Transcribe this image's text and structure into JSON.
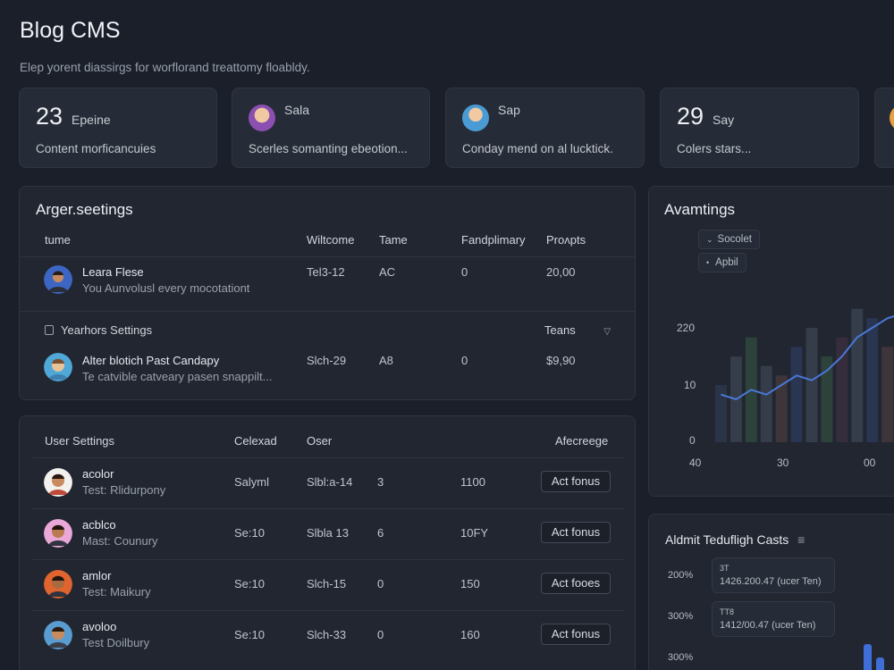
{
  "app": {
    "title": "Blog CMS",
    "subtitle": "Elep yorent diassirgs for worflorand treattomy floabldy."
  },
  "stat_cards": [
    {
      "big": "23",
      "label": "Epeine",
      "desc": "Content morficancuies",
      "avatar": ""
    },
    {
      "big": "",
      "label": "Sala",
      "desc": "Scerles somanting ebeotion...",
      "avatar": "avatar-1"
    },
    {
      "big": "",
      "label": "Sap",
      "desc": "Conday mend on al lucktick.",
      "avatar": "avatar-2"
    },
    {
      "big": "29",
      "label": "Say",
      "desc": "Colers stars...",
      "avatar": ""
    }
  ],
  "settings_panel": {
    "title": "Arger.seetings",
    "headers": [
      "tume",
      "Wiltcome",
      "Tame",
      "Fandplimary",
      "Proʌpts"
    ],
    "row1": {
      "name": "Leara Flese",
      "sub": "You Aunvolusl every mocotationt",
      "c1": "Tel3-12",
      "c2": "AC",
      "c3": "0",
      "c4": "20,00"
    },
    "section": {
      "label": "Yearhors Settings",
      "right": "Teans"
    },
    "row2": {
      "name": "Alter blotich Past Candapy",
      "sub": "Te catvible catveary pasen snappilt...",
      "c1": "Slch-29",
      "c2": "A8",
      "c3": "0",
      "c4": "$9,90"
    }
  },
  "user_panel": {
    "headers": [
      "User Settings",
      "Celexad",
      "Oser",
      "Afecreege"
    ],
    "rows": [
      {
        "name": "acolor",
        "sub": "Test: Rlidurpony",
        "c1": "Salyml",
        "c2": "Slbl:a-14",
        "c3": "3",
        "c4": "1100",
        "btn": "Act fonus"
      },
      {
        "name": "acblco",
        "sub": "Mast: Counury",
        "c1": "Se:10",
        "c2": "Slbla 13",
        "c3": "6",
        "c4": "10FY",
        "btn": "Act fonus"
      },
      {
        "name": "amlor",
        "sub": "Test: Maikury",
        "c1": "Se:10",
        "c2": "Slch-15",
        "c3": "0",
        "c4": "150",
        "btn": "Act fooes"
      },
      {
        "name": "avoloo",
        "sub": "Test Doilbury",
        "c1": "Se:10",
        "c2": "Slch-33",
        "c3": "0",
        "c4": "160",
        "btn": "Act fonus"
      }
    ]
  },
  "chart_panel": {
    "title": "Avamtings",
    "legend": [
      "Socolet",
      "Apbil"
    ],
    "chart_data": {
      "type": "bar",
      "y_tick_labels": [
        "220",
        "10",
        "0"
      ],
      "x_tick_labels": [
        "40",
        "30",
        "00"
      ],
      "bars": [
        12,
        18,
        22,
        16,
        14,
        20,
        24,
        18,
        22,
        28,
        26,
        20,
        24
      ],
      "line": [
        10,
        9,
        11,
        10,
        12,
        14,
        13,
        15,
        18,
        22,
        24,
        26,
        27
      ]
    }
  },
  "costs_panel": {
    "title": "Aldmit Tedufligh Casts",
    "y_labels": [
      "200%",
      "300%",
      "300%"
    ],
    "tips": [
      {
        "top": "3T",
        "body": "1426.200.47 (ucer Ten)"
      },
      {
        "top": "TT8",
        "body": "1412/00.47 (ucer Ten)"
      }
    ]
  },
  "colors": {
    "bg": "#1a1f2a",
    "card": "#262c37",
    "panel": "#212631",
    "accent": "#3f6ed8"
  }
}
